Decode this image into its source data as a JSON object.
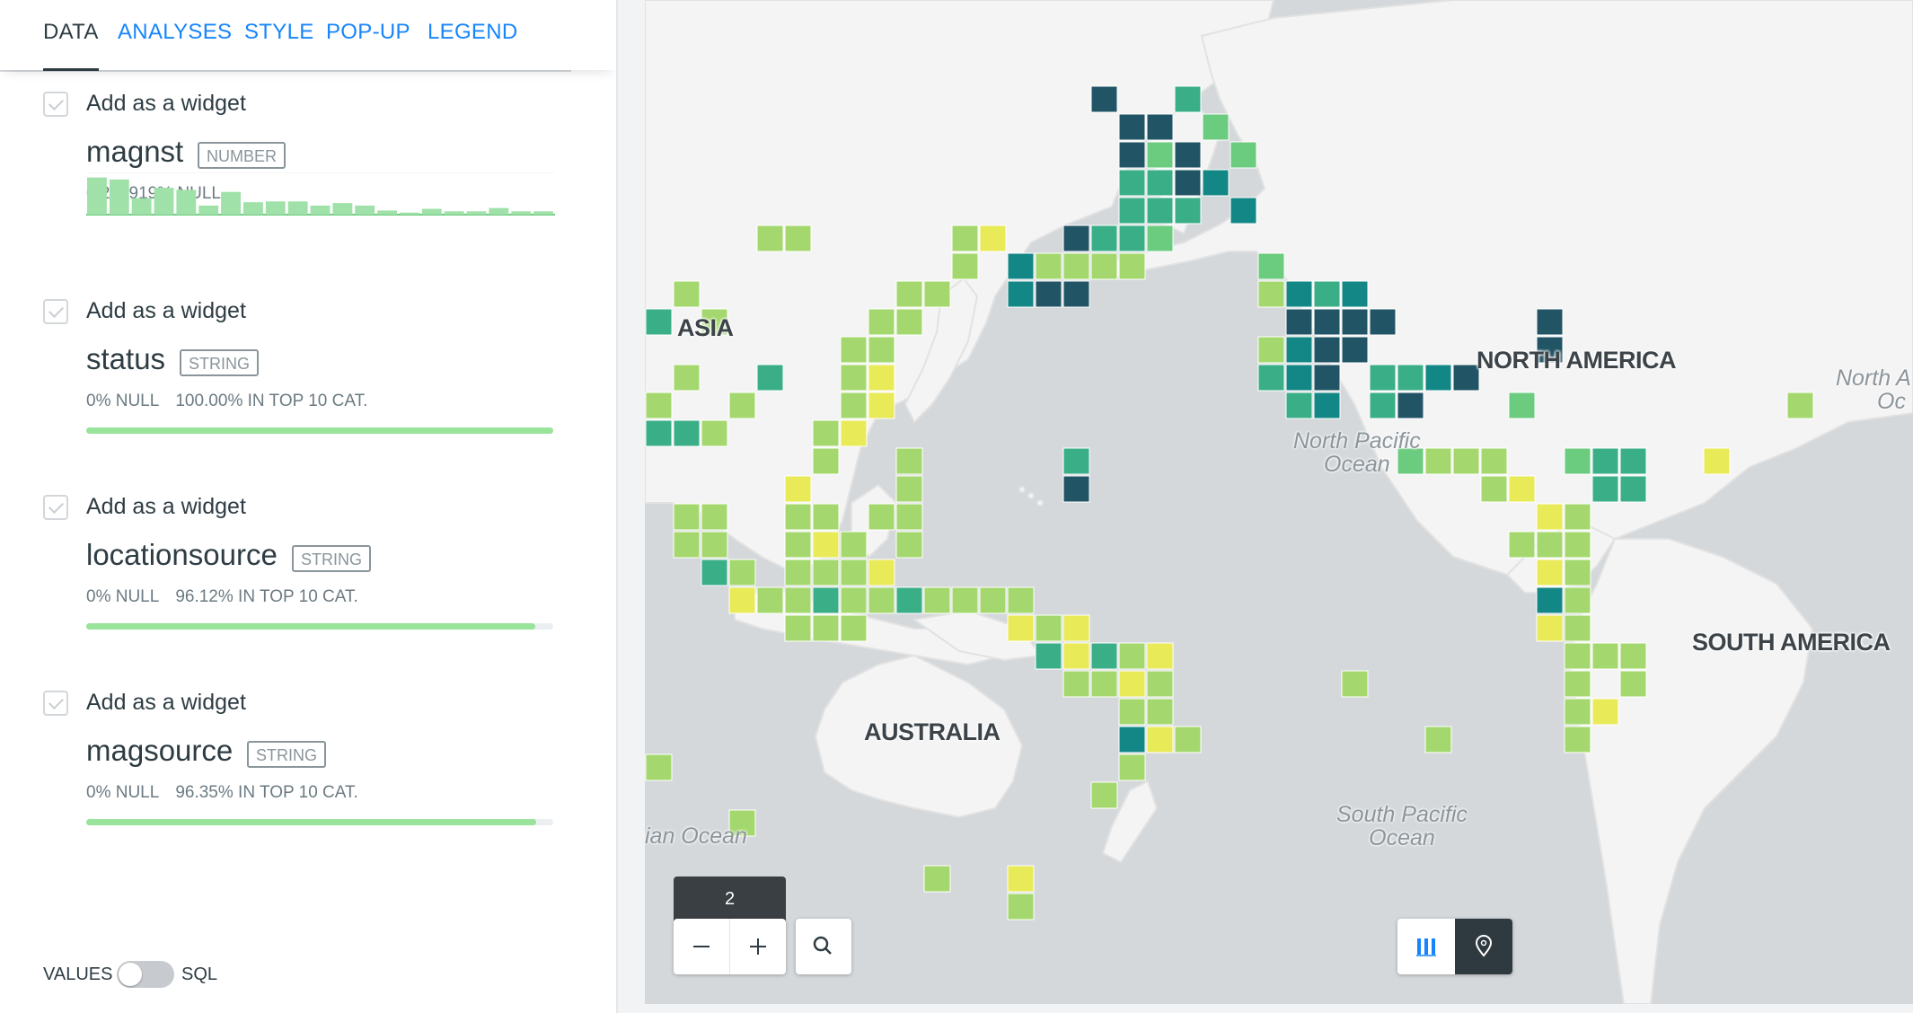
{
  "tabs": [
    {
      "label": "DATA",
      "active": true
    },
    {
      "label": "ANALYSES",
      "active": false
    },
    {
      "label": "STYLE",
      "active": false
    },
    {
      "label": "POP-UP",
      "active": false
    },
    {
      "label": "LEGEND",
      "active": false
    }
  ],
  "fields": [
    {
      "widget_label": "Add as a widget",
      "name": "magnst",
      "type": "NUMBER",
      "null_stat": "0.232919% NULL",
      "top_stat": "",
      "histogram": [
        0.9,
        0.85,
        0.4,
        0.65,
        0.6,
        0.22,
        0.55,
        0.3,
        0.32,
        0.32,
        0.22,
        0.28,
        0.22,
        0.1,
        0.05,
        0.14,
        0.08,
        0.08,
        0.16,
        0.08,
        0.08
      ]
    },
    {
      "widget_label": "Add as a widget",
      "name": "status",
      "type": "STRING",
      "null_stat": "0% NULL",
      "top_stat": "100.00% IN TOP 10 CAT.",
      "top_pct": 100.0
    },
    {
      "widget_label": "Add as a widget",
      "name": "locationsource",
      "type": "STRING",
      "null_stat": "0% NULL",
      "top_stat": "96.12% IN TOP 10 CAT.",
      "top_pct": 96.12
    },
    {
      "widget_label": "Add as a widget",
      "name": "magsource",
      "type": "STRING",
      "null_stat": "0% NULL",
      "top_stat": "96.35% IN TOP 10 CAT.",
      "top_pct": 96.35
    }
  ],
  "toggle": {
    "left_label": "VALUES",
    "right_label": "SQL",
    "on": false
  },
  "map": {
    "labels": {
      "asia": "ASIA",
      "north_america": "NORTH AMERICA",
      "south_america": "SOUTH AMERICA",
      "australia": "AUSTRALIA",
      "north_pacific_1": "North Pacific",
      "north_pacific_2": "Ocean",
      "south_pacific_1": "South Pacific",
      "south_pacific_2": "Ocean",
      "indian_ocean": "ian Ocean",
      "north_atlantic_1": "North A",
      "north_atlantic_2": "Oc"
    },
    "palette": {
      "land": "#f4f4f4",
      "water": "#d4d8db",
      "border": "#e2e2e2",
      "c1": "#e9ea58",
      "c2": "#a4d86e",
      "c3": "#6bcb7e",
      "c4": "#3aae87",
      "c5": "#138786",
      "c6": "#215464"
    },
    "zoom_level": "2",
    "icons": {
      "zoom_out": "minus-icon",
      "zoom_in": "plus-icon",
      "search": "search-icon",
      "widgets": "widgets-bars-icon",
      "marker": "map-marker-icon"
    }
  }
}
